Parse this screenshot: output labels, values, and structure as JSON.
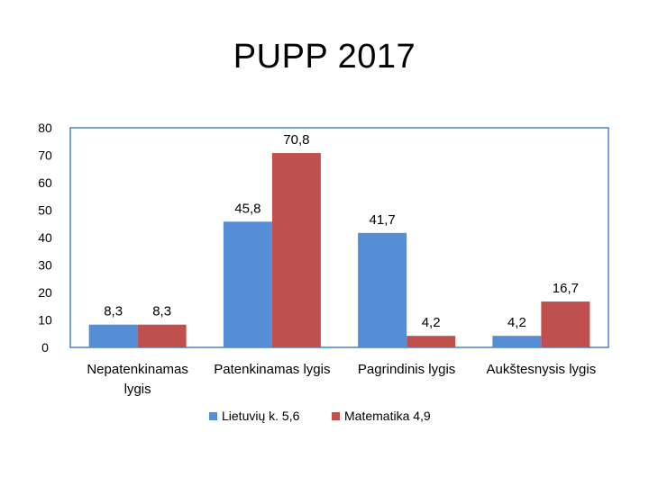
{
  "title": "PUPP 2017",
  "chart_data": {
    "type": "bar",
    "categories": [
      [
        "Nepatenkinamas",
        "lygis"
      ],
      [
        "Patenkinamas lygis"
      ],
      [
        "Pagrindinis lygis"
      ],
      [
        "Aukštesnysis lygis"
      ]
    ],
    "series": [
      {
        "name": "Lietuvių k. 5,6",
        "color": "#558ED5",
        "values": [
          8.3,
          45.8,
          41.7,
          4.2
        ],
        "labels": [
          "8,3",
          "45,8",
          "41,7",
          "4,2"
        ]
      },
      {
        "name": "Matematika 4,9",
        "color": "#C0504D",
        "values": [
          8.3,
          70.8,
          4.2,
          16.7
        ],
        "labels": [
          "8,3",
          "70,8",
          "4,2",
          "16,7"
        ]
      }
    ],
    "ylim": [
      0,
      80
    ],
    "yticks": [
      "0",
      "10",
      "20",
      "30",
      "40",
      "50",
      "60",
      "70",
      "80"
    ],
    "legend_position": "bottom",
    "grid": false,
    "frame_color": "#4F81BD"
  }
}
